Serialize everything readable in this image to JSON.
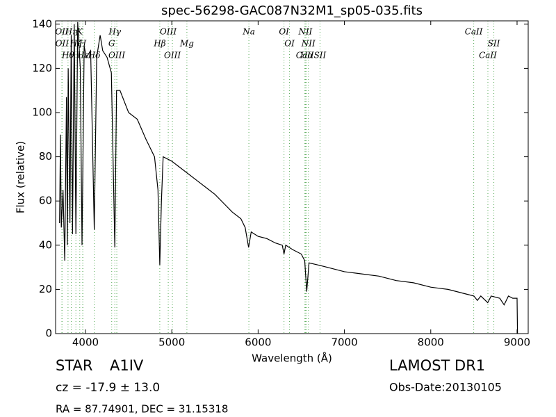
{
  "chart_data": {
    "type": "line",
    "title": "spec-56298-GAC087N32M1_sp05-035.fits",
    "x_label": "Wavelength (Å)",
    "y_label": "Flux (relative)",
    "xlim": [
      3654,
      9129
    ],
    "ylim": [
      0,
      141.5
    ],
    "xticks": [
      4000,
      5000,
      6000,
      7000,
      8000,
      9000
    ],
    "yticks": [
      0,
      20,
      40,
      60,
      80,
      100,
      120,
      140
    ],
    "color": "#000000",
    "x": [
      3700,
      3710,
      3720,
      3740,
      3760,
      3780,
      3790,
      3800,
      3820,
      3835,
      3850,
      3870,
      3889,
      3910,
      3940,
      3960,
      3985,
      4010,
      4060,
      4102,
      4130,
      4170,
      4200,
      4250,
      4300,
      4340,
      4360,
      4400,
      4500,
      4600,
      4700,
      4800,
      4840,
      4861,
      4880,
      4900,
      5000,
      5100,
      5200,
      5300,
      5400,
      5500,
      5600,
      5700,
      5800,
      5850,
      5890,
      5920,
      6000,
      6100,
      6200,
      6280,
      6300,
      6320,
      6400,
      6500,
      6540,
      6563,
      6590,
      6700,
      6800,
      7000,
      7200,
      7400,
      7600,
      7800,
      8000,
      8200,
      8400,
      8500,
      8540,
      8580,
      8660,
      8700,
      8800,
      8850,
      8900,
      8950,
      9000,
      9005
    ],
    "values": [
      50,
      90,
      48,
      65,
      33,
      107,
      40,
      120,
      50,
      135,
      45,
      140,
      45,
      141,
      120,
      40,
      130,
      125,
      128,
      47,
      125,
      135,
      128,
      125,
      118,
      39,
      110,
      110,
      100,
      97,
      88,
      80,
      65,
      31,
      60,
      80,
      78,
      75,
      72,
      69,
      66,
      63,
      59,
      55,
      52,
      48,
      39,
      46,
      44,
      43,
      41,
      40,
      36,
      40,
      38,
      36,
      33,
      19,
      32,
      31,
      30,
      28,
      27,
      26,
      24,
      23,
      21,
      20,
      18,
      17,
      15,
      17,
      14,
      17,
      16,
      13,
      17,
      16,
      16,
      0
    ],
    "line_color": "#55aa55",
    "lines": [
      {
        "wavelength": 3727,
        "label": "OII"
      },
      {
        "wavelength": 3729,
        "label": "OII"
      },
      {
        "wavelength": 3798,
        "label": "Hθ"
      },
      {
        "wavelength": 3835,
        "label": "Hη"
      },
      {
        "wavelength": 3889,
        "label": "Hζ"
      },
      {
        "wavelength": 3970,
        "label": "Hε"
      },
      {
        "wavelength": 3934,
        "label": "K"
      },
      {
        "wavelength": 3968,
        "label": "H"
      },
      {
        "wavelength": 4102,
        "label": "Hδ"
      },
      {
        "wavelength": 4340,
        "label": "Hγ"
      },
      {
        "wavelength": 4304,
        "label": "G"
      },
      {
        "wavelength": 4363,
        "label": "OIII"
      },
      {
        "wavelength": 4959,
        "label": "OIII"
      },
      {
        "wavelength": 4861,
        "label": "Hβ"
      },
      {
        "wavelength": 5007,
        "label": "OIII"
      },
      {
        "wavelength": 5893,
        "label": "Na"
      },
      {
        "wavelength": 5175,
        "label": "Mg"
      },
      {
        "wavelength": 6563,
        "label": "Hα"
      },
      {
        "wavelength": 6300,
        "label": "OI"
      },
      {
        "wavelength": 6364,
        "label": "OI"
      },
      {
        "wavelength": 6717,
        "label": "SII"
      },
      {
        "wavelength": 6548,
        "label": "NII"
      },
      {
        "wavelength": 6583,
        "label": "NII"
      },
      {
        "wavelength": 6542,
        "label": "CaII"
      },
      {
        "wavelength": 8498,
        "label": "CaII"
      },
      {
        "wavelength": 8731,
        "label": "SII"
      },
      {
        "wavelength": 8662,
        "label": "CaII"
      }
    ]
  },
  "footer": {
    "object": "STAR",
    "class": "A1IV",
    "redshift": "cz = -17.9 ± 13.0",
    "coords": "RA = 87.74901, DEC = 31.15318",
    "survey": "LAMOST DR1",
    "obs_date": "Obs-Date:20130105"
  }
}
